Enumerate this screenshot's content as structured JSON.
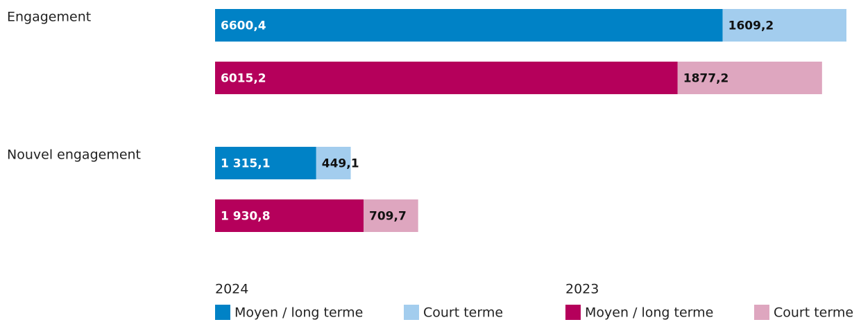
{
  "chart_data": {
    "type": "bar",
    "orientation": "horizontal",
    "stacked": true,
    "categories": [
      "Engagement",
      "Nouvel engagement"
    ],
    "groups": [
      {
        "name": "2024",
        "series": [
          {
            "name": "Moyen / long terme",
            "color": "#0082c6",
            "label_color": "#ffffff",
            "values": [
              6600.4,
              1315.1
            ],
            "value_labels": [
              "6600,4",
              "1 315,1"
            ]
          },
          {
            "name": "Court terme",
            "color": "#a3cdee",
            "label_color": "#111111",
            "values": [
              1609.2,
              449.1
            ],
            "value_labels": [
              "1609,2",
              "449,1"
            ]
          }
        ]
      },
      {
        "name": "2023",
        "series": [
          {
            "name": "Moyen / long terme",
            "color": "#b5005b",
            "label_color": "#ffffff",
            "values": [
              6015.2,
              1930.8
            ],
            "value_labels": [
              "6015,2",
              "1 930,8"
            ]
          },
          {
            "name": "Court terme",
            "color": "#dea6bf",
            "label_color": "#111111",
            "values": [
              1877.2,
              709.7
            ],
            "value_labels": [
              "1877,2",
              "709,7"
            ]
          }
        ]
      }
    ]
  }
}
